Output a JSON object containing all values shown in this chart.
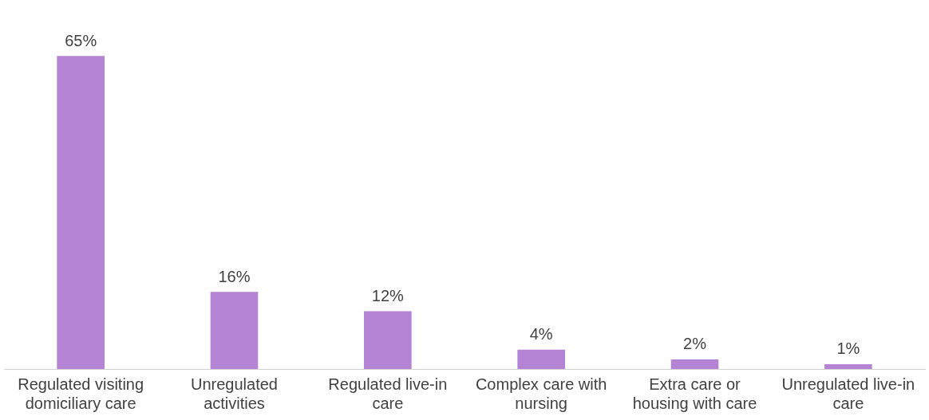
{
  "chart_data": {
    "type": "bar",
    "categories": [
      "Regulated visiting domiciliary care",
      "Unregulated activities",
      "Regulated live-in care",
      "Complex care with nursing",
      "Extra care or housing with care",
      "Unregulated live-in care"
    ],
    "values": [
      65,
      16,
      12,
      4,
      2,
      1
    ],
    "value_labels": [
      "65%",
      "16%",
      "12%",
      "4%",
      "2%",
      "1%"
    ],
    "color": "#b483d4",
    "grid": false,
    "legend": false
  }
}
